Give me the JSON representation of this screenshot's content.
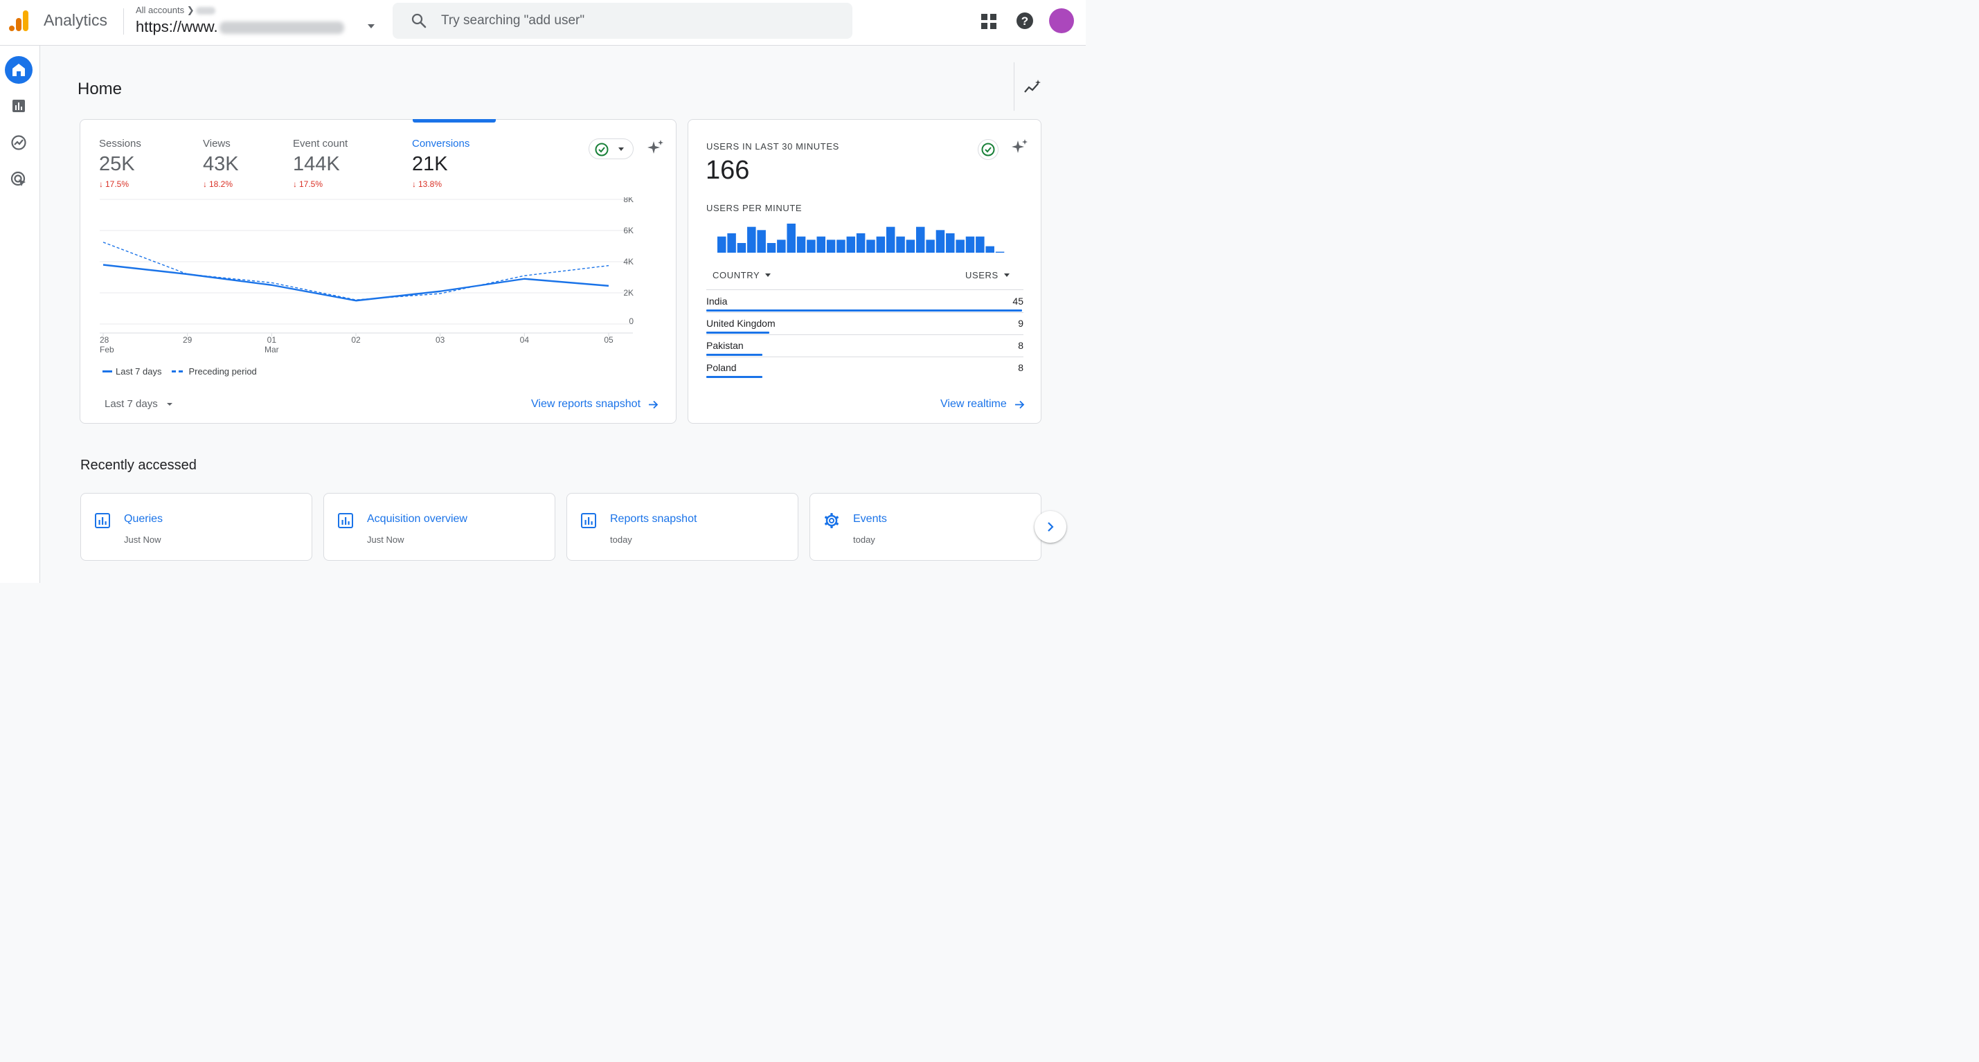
{
  "header": {
    "app_name": "Analytics",
    "account_crumb": "All accounts",
    "property_name": "https://www.",
    "search_placeholder": "Try searching \"add user\""
  },
  "sidebar": {
    "items": [
      {
        "icon": "home-icon",
        "active": true
      },
      {
        "icon": "reports-icon",
        "active": false
      },
      {
        "icon": "explore-icon",
        "active": false
      },
      {
        "icon": "advertising-icon",
        "active": false
      }
    ]
  },
  "page": {
    "title": "Home"
  },
  "overview": {
    "metrics": [
      {
        "label": "Sessions",
        "value": "25K",
        "change": "17.5%",
        "active": false
      },
      {
        "label": "Views",
        "value": "43K",
        "change": "18.2%",
        "active": false
      },
      {
        "label": "Event count",
        "value": "144K",
        "change": "17.5%",
        "active": false
      },
      {
        "label": "Conversions",
        "value": "21K",
        "change": "13.8%",
        "active": true
      }
    ],
    "legend_current": "Last 7 days",
    "legend_previous": "Preceding period",
    "date_range": "Last 7 days",
    "view_link": "View reports snapshot"
  },
  "chart_data": {
    "type": "line",
    "x_ticks": [
      {
        "top": "28",
        "bottom": "Feb"
      },
      {
        "top": "29",
        "bottom": ""
      },
      {
        "top": "01",
        "bottom": "Mar"
      },
      {
        "top": "02",
        "bottom": ""
      },
      {
        "top": "03",
        "bottom": ""
      },
      {
        "top": "04",
        "bottom": ""
      },
      {
        "top": "05",
        "bottom": ""
      }
    ],
    "y_ticks": [
      "8K",
      "6K",
      "4K",
      "2K",
      "0"
    ],
    "y_tick_values": [
      8000,
      6000,
      4000,
      2000,
      0
    ],
    "ylim": [
      0,
      8000
    ],
    "series": [
      {
        "name": "Last 7 days",
        "style": "solid",
        "values": [
          3800,
          3200,
          2500,
          1500,
          2100,
          2900,
          2450
        ]
      },
      {
        "name": "Preceding period",
        "style": "dashed",
        "values": [
          5250,
          3200,
          2650,
          1550,
          1950,
          3100,
          3750
        ]
      }
    ],
    "color": "#1a73e8",
    "grid": true
  },
  "realtime": {
    "title": "USERS IN LAST 30 MINUTES",
    "value": "166",
    "per_minute_label": "USERS PER MINUTE",
    "per_minute": [
      5,
      6,
      3,
      8,
      7,
      3,
      4,
      9,
      5,
      4,
      5,
      4,
      4,
      5,
      6,
      4,
      5,
      8,
      5,
      4,
      8,
      4,
      7,
      6,
      4,
      5,
      5,
      2,
      0.3
    ],
    "country_header": "COUNTRY",
    "users_header": "USERS",
    "countries": [
      {
        "name": "India",
        "users": "45"
      },
      {
        "name": "United Kingdom",
        "users": "9"
      },
      {
        "name": "Pakistan",
        "users": "8"
      },
      {
        "name": "Poland",
        "users": "8"
      }
    ],
    "view_link": "View realtime"
  },
  "recent": {
    "title": "Recently accessed",
    "items": [
      {
        "icon": "report-icon",
        "title": "Queries",
        "time": "Just Now"
      },
      {
        "icon": "report-icon",
        "title": "Acquisition overview",
        "time": "Just Now"
      },
      {
        "icon": "report-icon",
        "title": "Reports snapshot",
        "time": "today"
      },
      {
        "icon": "gear-icon",
        "title": "Events",
        "time": "today"
      }
    ]
  },
  "colors": {
    "accent": "#1a73e8",
    "negative": "#d93025",
    "success": "#188038",
    "avatar": "#ab47bc"
  }
}
